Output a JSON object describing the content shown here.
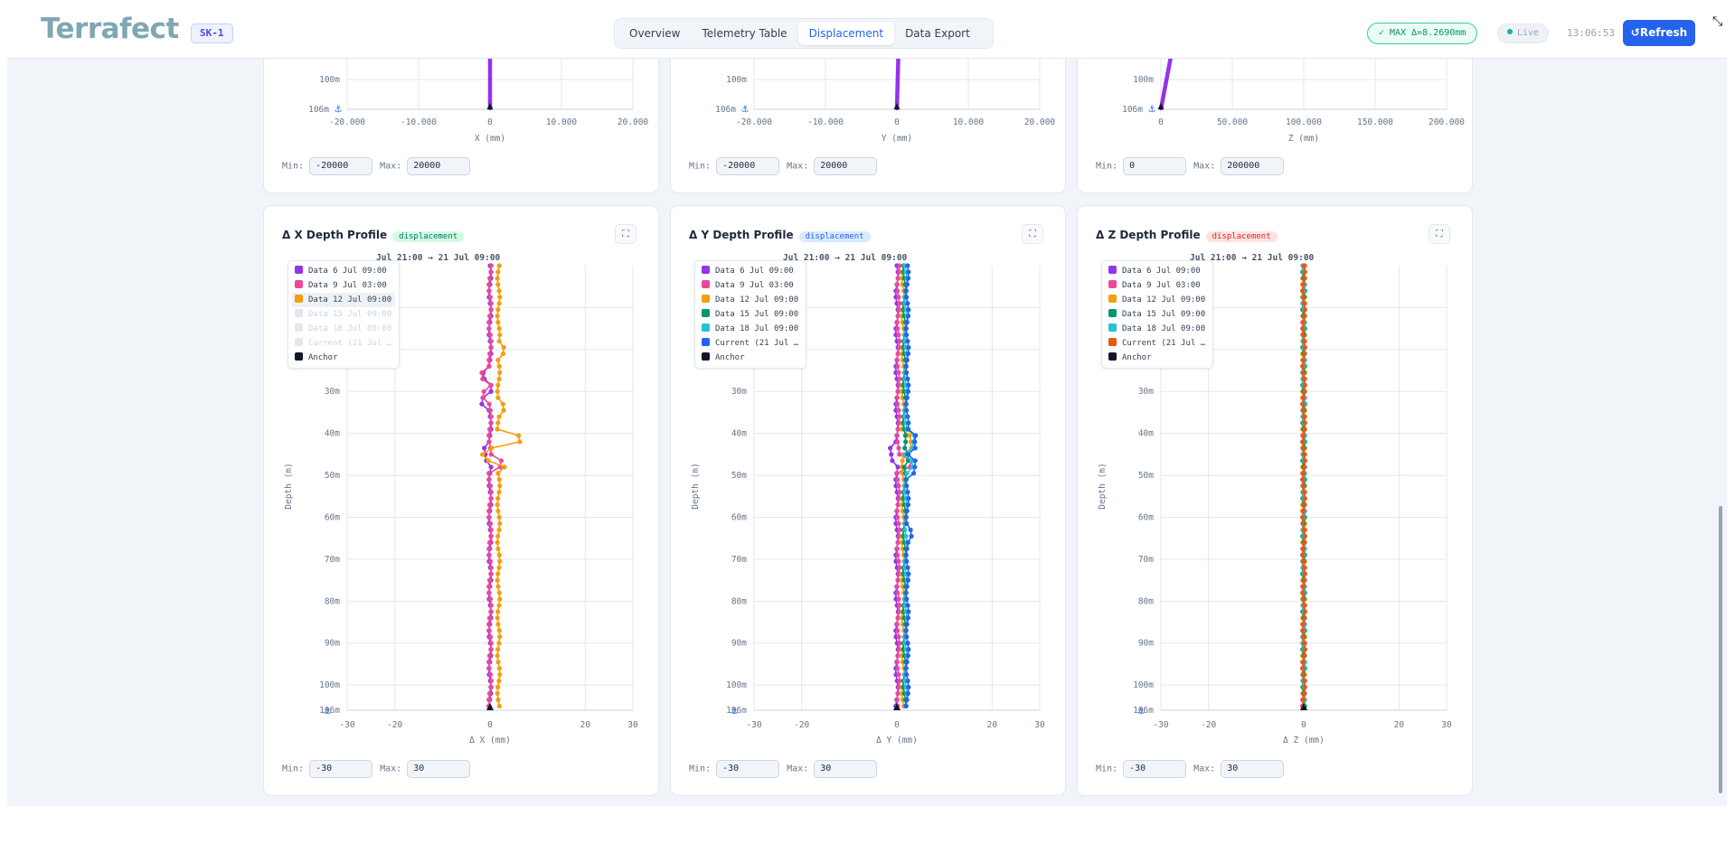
{
  "header": {
    "logo": "Terrafect",
    "site_badge": "SK-1",
    "tabs": [
      {
        "label": "Overview",
        "active": false
      },
      {
        "label": "Telemetry Table",
        "active": false
      },
      {
        "label": "Displacement",
        "active": true
      },
      {
        "label": "Data Export",
        "active": false
      }
    ],
    "max_badge": "✓ MAX Δ=8.2690mm",
    "live_label": "Live",
    "clock": "13:06:53",
    "refresh_label": "Refresh"
  },
  "colors": {
    "series_6jul": "#9333ea",
    "series_9jul": "#ec4899",
    "series_12jul": "#f59e0b",
    "series_15jul": "#059669",
    "series_18jul": "#22c3d6",
    "series_current_y": "#2563eb",
    "series_current_z": "#ea580c",
    "anchor": "#111827",
    "accent": "#2563eb"
  },
  "top_panels": [
    {
      "axis_label": "X (mm)",
      "ticks": [
        "-20.000",
        "-10.000",
        "0",
        "10.000",
        "20.000"
      ],
      "depth_ticks": [
        "100m",
        "106m"
      ],
      "min": "-20000",
      "max": "20000"
    },
    {
      "axis_label": "Y (mm)",
      "ticks": [
        "-20.000",
        "-10.000",
        "0",
        "10.000",
        "20.000"
      ],
      "depth_ticks": [
        "100m",
        "106m"
      ],
      "min": "-20000",
      "max": "20000"
    },
    {
      "axis_label": "Z (mm)",
      "ticks": [
        "0",
        "50.000",
        "100.000",
        "150.000",
        "200.000"
      ],
      "depth_ticks": [
        "100m",
        "106m"
      ],
      "min": "0",
      "max": "200000"
    }
  ],
  "labels": {
    "min": "Min:",
    "max": "Max:",
    "depth_axis": "Depth (m)",
    "time_range": "Jul 21:00 → 21 Jul 09:00"
  },
  "chart_data": [
    {
      "type": "line",
      "title": "Δ X Depth Profile",
      "tag": "displacement",
      "xlabel": "Δ X (mm)",
      "ylabel": "Depth (m)",
      "xlim": [
        -30,
        30
      ],
      "x_ticks": [
        "-30",
        "-20",
        "0",
        "20",
        "30"
      ],
      "ylim": [
        0,
        106
      ],
      "y_ticks": [
        "30m",
        "40m",
        "50m",
        "60m",
        "70m",
        "80m",
        "90m",
        "100m",
        "106m"
      ],
      "legend_position": "top-left",
      "min": "-30",
      "max": "30",
      "series": [
        {
          "name": "Data 6 Jul 09:00",
          "color": "#9333ea",
          "visible": true,
          "offset": 0.0,
          "spikes": [
            [
              26,
              -1.2
            ],
            [
              32,
              -1.5
            ],
            [
              45,
              -1.0
            ]
          ]
        },
        {
          "name": "Data 9 Jul 03:00",
          "color": "#ec4899",
          "visible": true,
          "offset": 0.0,
          "spikes": [
            [
              26,
              -1.8
            ],
            [
              31,
              -1.2
            ],
            [
              47,
              2.2
            ]
          ]
        },
        {
          "name": "Data 12 Jul 09:00",
          "color": "#f59e0b",
          "visible": true,
          "offset": 1.8,
          "spikes": [
            [
              20,
              1.2
            ],
            [
              34,
              0.8
            ],
            [
              41,
              2.5
            ],
            [
              42,
              1.8
            ],
            [
              45,
              -3.5
            ],
            [
              47,
              1.5
            ]
          ]
        },
        {
          "name": "Data 15 Jul 09:00",
          "color": "#059669",
          "visible": false,
          "offset": 0.0,
          "spikes": []
        },
        {
          "name": "Data 18 Jul 09:00",
          "color": "#22c3d6",
          "visible": false,
          "offset": 0.0,
          "spikes": []
        },
        {
          "name": "Current (21 Jul …",
          "color": "#2563eb",
          "visible": false,
          "offset": 0.0,
          "spikes": []
        },
        {
          "name": "Anchor",
          "color": "#111827",
          "visible": true,
          "offset": 0.0,
          "spikes": []
        }
      ]
    },
    {
      "type": "line",
      "title": "Δ Y Depth Profile",
      "tag": "displacement",
      "xlabel": "Δ Y (mm)",
      "ylabel": "Depth (m)",
      "xlim": [
        -30,
        30
      ],
      "x_ticks": [
        "-30",
        "-20",
        "0",
        "20",
        "30"
      ],
      "ylim": [
        0,
        106
      ],
      "y_ticks": [
        "30m",
        "40m",
        "50m",
        "60m",
        "70m",
        "80m",
        "90m",
        "100m",
        "106m"
      ],
      "legend_position": "top-left",
      "min": "-30",
      "max": "30",
      "series": [
        {
          "name": "Data 6 Jul 09:00",
          "color": "#9333ea",
          "visible": true,
          "offset": 0.0,
          "spikes": [
            [
              45,
              -1.2
            ]
          ]
        },
        {
          "name": "Data 9 Jul 03:00",
          "color": "#ec4899",
          "visible": true,
          "offset": 0.3,
          "spikes": [
            [
              47,
              2.5
            ]
          ]
        },
        {
          "name": "Data 12 Jul 09:00",
          "color": "#f59e0b",
          "visible": true,
          "offset": 1.3,
          "spikes": [
            [
              42,
              1.5
            ]
          ]
        },
        {
          "name": "Data 15 Jul 09:00",
          "color": "#059669",
          "visible": true,
          "offset": 1.6,
          "spikes": [
            [
              46,
              1.0
            ]
          ]
        },
        {
          "name": "Data 18 Jul 09:00",
          "color": "#22c3d6",
          "visible": true,
          "offset": 1.9,
          "spikes": [
            [
              42,
              1.6
            ],
            [
              47,
              1.2
            ]
          ]
        },
        {
          "name": "Current (21 Jul …",
          "color": "#2563eb",
          "visible": true,
          "offset": 2.2,
          "spikes": [
            [
              42,
              1.8
            ],
            [
              48,
              1.4
            ],
            [
              64,
              0.6
            ]
          ]
        },
        {
          "name": "Anchor",
          "color": "#111827",
          "visible": true,
          "offset": 0.0,
          "spikes": []
        }
      ]
    },
    {
      "type": "line",
      "title": "Δ Z Depth Profile",
      "tag": "displacement",
      "xlabel": "Δ Z (mm)",
      "ylabel": "Depth (m)",
      "xlim": [
        -30,
        30
      ],
      "x_ticks": [
        "-30",
        "-20",
        "0",
        "20",
        "30"
      ],
      "ylim": [
        0,
        106
      ],
      "y_ticks": [
        "30m",
        "40m",
        "50m",
        "60m",
        "70m",
        "80m",
        "90m",
        "100m",
        "106m"
      ],
      "legend_position": "top-left",
      "min": "-30",
      "max": "30",
      "series": [
        {
          "name": "Data 6 Jul 09:00",
          "color": "#9333ea",
          "visible": true,
          "offset": 0.0,
          "spikes": []
        },
        {
          "name": "Data 9 Jul 03:00",
          "color": "#ec4899",
          "visible": true,
          "offset": 0.0,
          "spikes": []
        },
        {
          "name": "Data 12 Jul 09:00",
          "color": "#f59e0b",
          "visible": true,
          "offset": 0.0,
          "spikes": []
        },
        {
          "name": "Data 15 Jul 09:00",
          "color": "#059669",
          "visible": true,
          "offset": 0.0,
          "spikes": []
        },
        {
          "name": "Data 18 Jul 09:00",
          "color": "#22c3d6",
          "visible": true,
          "offset": 0.0,
          "spikes": []
        },
        {
          "name": "Current (21 Jul …",
          "color": "#ea580c",
          "visible": true,
          "offset": 0.0,
          "spikes": []
        },
        {
          "name": "Anchor",
          "color": "#111827",
          "visible": true,
          "offset": 0.0,
          "spikes": []
        }
      ]
    }
  ]
}
